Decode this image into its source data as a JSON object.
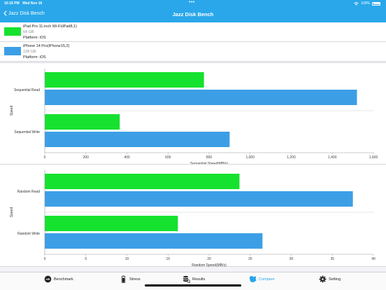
{
  "status_bar": {
    "time": "10:16 PM",
    "date": "Wed Nov 16",
    "battery": "100%"
  },
  "nav": {
    "back_label": "Jazz Disk Bench",
    "title": "Jazz Disk Bench"
  },
  "devices": [
    {
      "name": "iPad Pro 11-inch Wi-Fi(iPad8,1)",
      "storage": "64 GB",
      "platform": "Platform: iOS",
      "color": "#15e22e"
    },
    {
      "name": "iPhone 14 Pro(iPhone15,2)",
      "storage": "128 GB",
      "platform": "Platform: iOS",
      "color": "#3c9fe6"
    }
  ],
  "chart_data": [
    {
      "type": "bar",
      "orientation": "horizontal",
      "categories": [
        "Sequential Read",
        "Sequential Write"
      ],
      "series": [
        {
          "name": "iPad Pro 11-inch Wi-Fi(iPad8,1)",
          "values": [
            775,
            365
          ],
          "color": "#15e22e"
        },
        {
          "name": "iPhone 14 Pro(iPhone15,2)",
          "values": [
            1520,
            900
          ],
          "color": "#3c9fe6"
        }
      ],
      "xlabel": "Sequential Speed(MB/s)",
      "ylabel": "Speed",
      "xlim": [
        0,
        1600
      ],
      "xticks": [
        "0",
        "200",
        "400",
        "600",
        "800",
        "1,000",
        "1,200",
        "1,400",
        "1,600"
      ],
      "tick_values": [
        0,
        200,
        400,
        600,
        800,
        1000,
        1200,
        1400,
        1600
      ],
      "grid": false
    },
    {
      "type": "bar",
      "orientation": "horizontal",
      "categories": [
        "Random Read",
        "Random Write"
      ],
      "series": [
        {
          "name": "iPad Pro 11-inch Wi-Fi(iPad8,1)",
          "values": [
            23.7,
            16.2
          ],
          "color": "#15e22e"
        },
        {
          "name": "iPhone 14 Pro(iPhone15,2)",
          "values": [
            37.5,
            26.5
          ],
          "color": "#3c9fe6"
        }
      ],
      "xlabel": "Random Speed(MB/s)",
      "ylabel": "Speed",
      "xlim": [
        0,
        40
      ],
      "xticks": [
        "0",
        "5",
        "10",
        "15",
        "20",
        "25",
        "30",
        "35",
        "40"
      ],
      "tick_values": [
        0,
        5,
        10,
        15,
        20,
        25,
        30,
        35,
        40
      ],
      "grid": false
    }
  ],
  "tabs": [
    {
      "label": "Benchmark",
      "icon": "speedometer-icon",
      "active": false
    },
    {
      "label": "Stress",
      "icon": "battery-stack-icon",
      "active": false
    },
    {
      "label": "Results",
      "icon": "database-icon",
      "active": false
    },
    {
      "label": "Compare",
      "icon": "compare-icon",
      "active": true
    },
    {
      "label": "Setting",
      "icon": "gear-icon",
      "active": false
    }
  ]
}
